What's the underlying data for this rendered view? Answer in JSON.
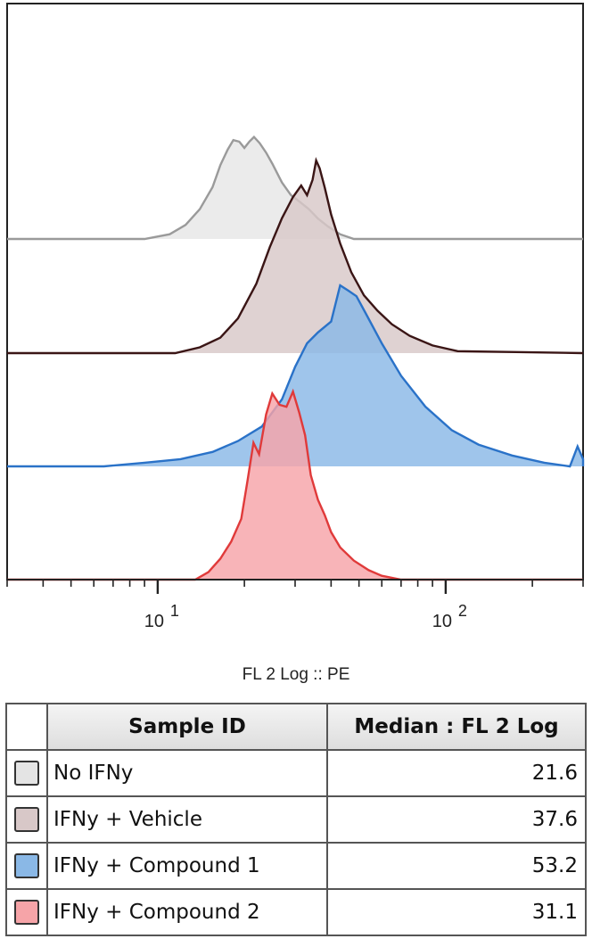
{
  "chart_data": {
    "type": "area",
    "title": "",
    "xlabel": "FL 2 Log :: PE",
    "ylabel": "",
    "x_scale": "log",
    "xlim": [
      3,
      300
    ],
    "x_major_ticks": [
      10,
      100
    ],
    "x_major_tick_labels": [
      {
        "base": "10",
        "exp": "1"
      },
      {
        "base": "10",
        "exp": "2"
      }
    ],
    "layout": "offset overlay (ridgeline) histograms",
    "grid": false,
    "legend": "table below chart",
    "series": [
      {
        "name": "No IFNy",
        "line_color": "#9a9a9a",
        "fill_color": "#e6e6e6",
        "x": [
          9.0,
          11.0,
          12.5,
          14.0,
          15.5,
          16.5,
          17.5,
          18.3,
          19.2,
          20.0,
          20.8,
          21.6,
          22.6,
          23.8,
          25.0,
          27.0,
          29.0,
          31.0,
          33.5,
          36.0,
          39.0,
          43.0,
          48.0,
          300.0
        ],
        "values": [
          0,
          3,
          9,
          19,
          33,
          47,
          57,
          63,
          62,
          58,
          62,
          65,
          61,
          55,
          48,
          36,
          28,
          24,
          19,
          13,
          8,
          3,
          0,
          0
        ]
      },
      {
        "name": "IFNy + Vehicle",
        "line_color": "#3a1515",
        "fill_color": "#d8c8c8",
        "x": [
          11.5,
          14.0,
          16.5,
          19.0,
          22.0,
          24.5,
          27.0,
          29.5,
          31.5,
          33.0,
          34.5,
          35.5,
          36.5,
          38.0,
          40.0,
          43.0,
          47.0,
          52.0,
          58.0,
          65.0,
          75.0,
          90.0,
          110.0,
          300.0
        ],
        "values": [
          0,
          3,
          8,
          18,
          36,
          55,
          70,
          81,
          87,
          82,
          90,
          100,
          96,
          86,
          72,
          57,
          42,
          30,
          22,
          15,
          9,
          4,
          1,
          0
        ]
      },
      {
        "name": "IFNy + Compound 1",
        "line_color": "#2a72c8",
        "fill_color": "#8ab8e6",
        "x": [
          6.5,
          9.0,
          12.0,
          15.5,
          19.0,
          23.0,
          27.0,
          30.0,
          33.0,
          36.0,
          40.0,
          43.0,
          46.0,
          49.0,
          53.0,
          60.0,
          70.0,
          85.0,
          105.0,
          130.0,
          170.0,
          220.0,
          270.0,
          287.0,
          300.0
        ],
        "values": [
          0,
          2,
          4,
          8,
          14,
          22,
          37,
          55,
          68,
          74,
          80,
          100,
          97,
          94,
          84,
          68,
          50,
          33,
          20,
          12,
          6,
          2,
          0,
          11,
          4
        ]
      },
      {
        "name": "IFNy + Compound 2",
        "line_color": "#e03a3a",
        "fill_color": "#f6a4a8",
        "x": [
          13.5,
          15.0,
          16.5,
          18.0,
          19.5,
          20.5,
          21.5,
          22.5,
          23.8,
          25.0,
          26.5,
          28.0,
          29.5,
          31.0,
          32.5,
          34.0,
          36.0,
          38.0,
          40.0,
          43.0,
          48.0,
          54.0,
          60.0,
          70.0,
          300.0
        ],
        "values": [
          0,
          4,
          11,
          20,
          32,
          52,
          72,
          66,
          87,
          98,
          92,
          91,
          99,
          88,
          76,
          55,
          42,
          34,
          25,
          17,
          10,
          5,
          2,
          0,
          0
        ]
      }
    ]
  },
  "table": {
    "headers": [
      "Sample ID",
      "Median : FL 2 Log"
    ],
    "rows": [
      {
        "swatch_color": "#e4e4e4",
        "sample": "No IFNy",
        "median": "21.6"
      },
      {
        "swatch_color": "#d8c8c8",
        "sample": "IFNy + Vehicle",
        "median": "37.6"
      },
      {
        "swatch_color": "#8ab8e6",
        "sample": "IFNy + Compound 1",
        "median": "53.2"
      },
      {
        "swatch_color": "#f6a4a8",
        "sample": "IFNy + Compound 2",
        "median": "31.1"
      }
    ]
  }
}
